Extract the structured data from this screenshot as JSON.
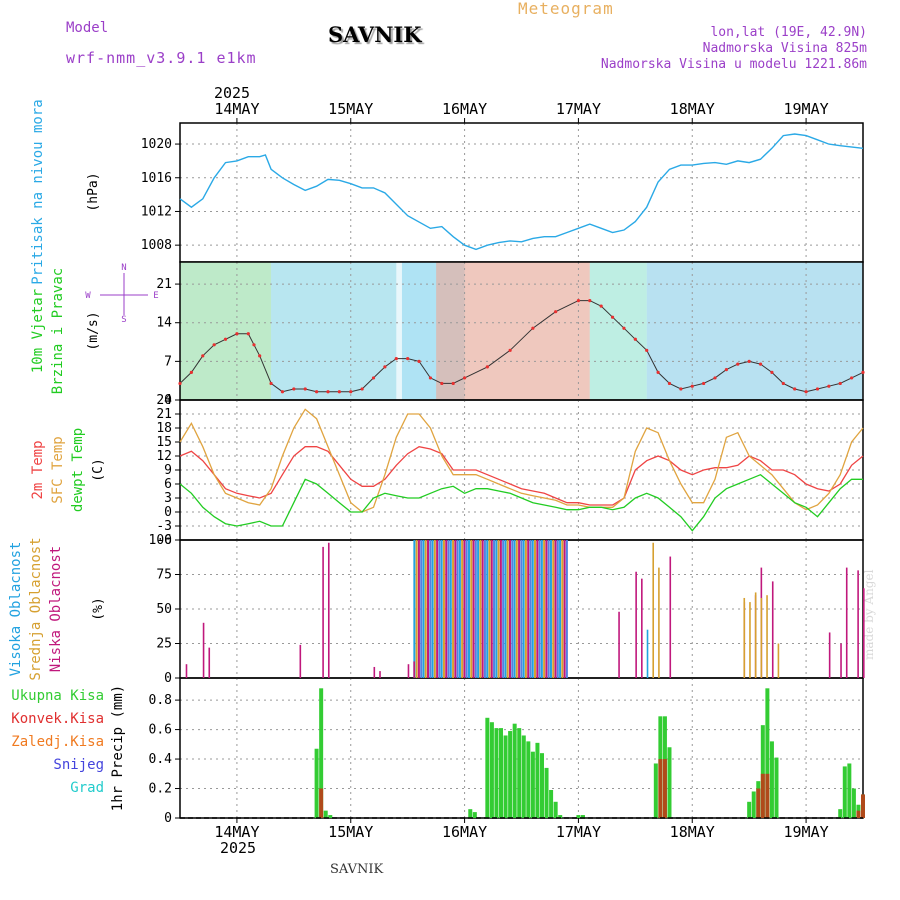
{
  "header": {
    "model_label": "Model",
    "model_name": "wrf-nmm_v3.9.1 e1km",
    "station": "SAVNIK",
    "title": "Meteogram",
    "lonlat": "lon,lat (19E, 42.9N)",
    "altitude": "Nadmorska Visina 825m",
    "model_altitude": "Nadmorska Visina u modelu 1221.86m"
  },
  "footer": {
    "station": "SAVNIK"
  },
  "credit": "made by Angel",
  "colors": {
    "pressure": "#2aa9e6",
    "temp2m": "#ef4444",
    "sfc": "#e0a440",
    "dewpt": "#22cc22",
    "high_cloud": "#22a2e0",
    "mid_cloud": "#d6a030",
    "low_cloud": "#c0187c",
    "total_precip": "#33cc33",
    "conv_precip": "#e03030",
    "frozen_precip": "#f07a20",
    "snow": "#4444dd",
    "graupel": "#22cccc",
    "title_purple": "#9b3fc8",
    "meteogram_orange": "#e8b060"
  },
  "chart_data": [
    {
      "type": "line",
      "name": "pressure",
      "title": "",
      "ylabel_lines": [
        "Pritisak na nivou mora",
        "(hPa)"
      ],
      "ylim": [
        1006,
        1022.5
      ],
      "yticks": [
        1008,
        1012,
        1016,
        1020
      ],
      "year_label": "2025",
      "date_labels": [
        "14MAY",
        "15MAY",
        "16MAY",
        "17MAY",
        "18MAY",
        "19MAY"
      ],
      "x_days": [
        0,
        1,
        2,
        3,
        4,
        5
      ],
      "xlim": [
        -0.5,
        5.5
      ],
      "grid": true,
      "series": [
        {
          "x": [
            -0.5,
            -0.4,
            -0.3,
            -0.2,
            -0.1,
            0,
            0.1,
            0.2,
            0.25,
            0.3,
            0.4,
            0.5,
            0.6,
            0.7,
            0.8,
            0.9,
            1,
            1.1,
            1.2,
            1.3,
            1.5,
            1.7,
            1.8,
            1.9,
            2,
            2.1,
            2.2,
            2.3,
            2.4,
            2.5,
            2.6,
            2.7,
            2.8,
            2.9,
            3,
            3.1,
            3.2,
            3.3,
            3.4,
            3.5,
            3.6,
            3.7,
            3.8,
            3.9,
            4,
            4.1,
            4.2,
            4.3,
            4.4,
            4.5,
            4.6,
            4.7,
            4.8,
            4.9,
            5,
            5.1,
            5.2,
            5.3,
            5.5
          ],
          "values": [
            1013.5,
            1012.5,
            1013.5,
            1016,
            1017.8,
            1018,
            1018.5,
            1018.5,
            1018.7,
            1017,
            1016,
            1015.2,
            1014.5,
            1015,
            1015.8,
            1015.7,
            1015.3,
            1014.8,
            1014.8,
            1014.2,
            1011.5,
            1010,
            1010.2,
            1009,
            1008,
            1007.5,
            1008,
            1008.3,
            1008.5,
            1008.4,
            1008.8,
            1009,
            1009,
            1009.5,
            1010,
            1010.5,
            1010,
            1009.5,
            1009.8,
            1010.8,
            1012.5,
            1015.5,
            1017,
            1017.5,
            1017.5,
            1017.7,
            1017.8,
            1017.6,
            1018,
            1017.8,
            1018.2,
            1019.5,
            1021,
            1021.2,
            1021,
            1020.5,
            1020,
            1019.8,
            1019.5
          ]
        }
      ]
    },
    {
      "type": "line",
      "name": "wind",
      "ylabel_lines": [
        "10m Vjetar",
        "Brzina i Pravac",
        "(m/s)"
      ],
      "compass_labels": {
        "n": "N",
        "s": "S",
        "w": "W",
        "e": "E"
      },
      "ylim": [
        0,
        25
      ],
      "yticks": [
        0,
        7,
        14,
        21
      ],
      "xlim": [
        -0.5,
        5.5
      ],
      "grid": true,
      "series": [
        {
          "name": "speed",
          "x": [
            -0.5,
            -0.4,
            -0.3,
            -0.2,
            -0.1,
            0,
            0.1,
            0.15,
            0.2,
            0.3,
            0.4,
            0.5,
            0.6,
            0.7,
            0.8,
            0.9,
            1,
            1.1,
            1.2,
            1.3,
            1.4,
            1.5,
            1.6,
            1.7,
            1.8,
            1.9,
            2,
            2.2,
            2.4,
            2.6,
            2.8,
            3,
            3.1,
            3.2,
            3.3,
            3.4,
            3.5,
            3.6,
            3.7,
            3.8,
            3.9,
            4,
            4.1,
            4.2,
            4.3,
            4.4,
            4.5,
            4.6,
            4.7,
            4.8,
            4.9,
            5,
            5.1,
            5.2,
            5.3,
            5.4,
            5.5
          ],
          "values": [
            3,
            5,
            8,
            10,
            11,
            12,
            12,
            10,
            8,
            3,
            1.5,
            2,
            2,
            1.5,
            1.5,
            1.5,
            1.5,
            2,
            4,
            6,
            7.5,
            7.5,
            7,
            4,
            3,
            3,
            4,
            6,
            9,
            13,
            16,
            18,
            18,
            17,
            15,
            13,
            11,
            9,
            5,
            3,
            2,
            2.5,
            3,
            4,
            5.5,
            6.5,
            7,
            6.5,
            5,
            3,
            2,
            1.5,
            2,
            2.5,
            3,
            4,
            5
          ]
        }
      ]
    },
    {
      "type": "line",
      "name": "temperature",
      "ylabel_lines": [
        "2m Temp",
        "SFC Temp",
        "dewpt Temp",
        "(C)"
      ],
      "ylim": [
        -6,
        24
      ],
      "yticks": [
        -6,
        -3,
        0,
        3,
        6,
        9,
        12,
        15,
        18,
        21,
        24
      ],
      "xlim": [
        -0.5,
        5.5
      ],
      "grid": true,
      "series": [
        {
          "name": "2m Temp",
          "x": [
            -0.5,
            -0.4,
            -0.3,
            -0.2,
            -0.1,
            0,
            0.1,
            0.2,
            0.3,
            0.4,
            0.5,
            0.6,
            0.7,
            0.8,
            0.9,
            1,
            1.1,
            1.2,
            1.3,
            1.4,
            1.5,
            1.6,
            1.7,
            1.8,
            1.9,
            2,
            2.1,
            2.2,
            2.3,
            2.4,
            2.5,
            2.6,
            2.7,
            2.8,
            2.9,
            3,
            3.1,
            3.2,
            3.3,
            3.4,
            3.5,
            3.6,
            3.7,
            3.8,
            3.9,
            4,
            4.1,
            4.2,
            4.3,
            4.4,
            4.5,
            4.6,
            4.7,
            4.8,
            4.9,
            5,
            5.1,
            5.2,
            5.3,
            5.4,
            5.5
          ],
          "values": [
            12,
            13,
            11,
            8,
            5,
            4,
            3.5,
            3,
            4,
            8,
            12,
            14,
            14,
            13,
            10,
            7,
            5.5,
            5.5,
            7,
            10,
            12.5,
            14,
            13.5,
            12.5,
            9,
            9,
            9,
            8,
            7,
            6,
            5,
            4.5,
            4,
            3,
            2,
            2,
            1.5,
            1.5,
            1.5,
            3,
            9,
            11,
            12,
            11,
            9,
            8,
            9,
            9.5,
            9.5,
            10,
            12,
            11,
            9,
            9,
            8,
            6,
            5,
            4.5,
            6,
            10,
            12
          ]
        },
        {
          "name": "SFC Temp",
          "x": [
            -0.5,
            -0.4,
            -0.3,
            -0.2,
            -0.1,
            0,
            0.1,
            0.2,
            0.3,
            0.4,
            0.5,
            0.6,
            0.7,
            0.8,
            0.9,
            1,
            1.1,
            1.2,
            1.3,
            1.4,
            1.5,
            1.6,
            1.7,
            1.8,
            1.9,
            2,
            2.1,
            2.2,
            2.3,
            2.4,
            2.5,
            2.6,
            2.7,
            2.8,
            2.9,
            3,
            3.1,
            3.2,
            3.3,
            3.4,
            3.5,
            3.6,
            3.7,
            3.8,
            3.9,
            4,
            4.1,
            4.2,
            4.3,
            4.4,
            4.5,
            4.6,
            4.7,
            4.8,
            4.9,
            5,
            5.1,
            5.2,
            5.3,
            5.4,
            5.5
          ],
          "values": [
            15,
            19,
            14,
            8,
            4,
            3,
            2,
            1.5,
            5,
            12,
            18,
            22,
            20,
            14,
            8,
            2,
            0,
            1,
            8,
            16,
            21,
            21,
            18,
            12,
            8,
            8,
            8,
            7,
            6,
            5,
            4,
            3.5,
            3,
            2.5,
            1.5,
            1.5,
            1,
            1,
            1,
            3,
            13,
            18,
            17,
            11,
            6,
            2,
            2,
            7,
            16,
            17,
            12,
            10,
            8,
            5,
            2,
            0.5,
            1.5,
            4,
            8,
            15,
            18
          ]
        },
        {
          "name": "dewpt Temp",
          "x": [
            -0.5,
            -0.4,
            -0.3,
            -0.2,
            -0.1,
            0,
            0.1,
            0.2,
            0.3,
            0.4,
            0.5,
            0.6,
            0.7,
            0.8,
            0.9,
            1,
            1.1,
            1.2,
            1.3,
            1.4,
            1.5,
            1.6,
            1.7,
            1.8,
            1.9,
            2,
            2.1,
            2.2,
            2.3,
            2.4,
            2.5,
            2.6,
            2.7,
            2.8,
            2.9,
            3,
            3.1,
            3.2,
            3.3,
            3.4,
            3.5,
            3.6,
            3.7,
            3.8,
            3.9,
            4,
            4.1,
            4.2,
            4.3,
            4.4,
            4.5,
            4.6,
            4.7,
            4.8,
            4.9,
            5,
            5.1,
            5.2,
            5.3,
            5.4,
            5.5
          ],
          "values": [
            6,
            4,
            1,
            -1,
            -2.5,
            -3,
            -2.5,
            -2,
            -3,
            -3,
            2,
            7,
            6,
            4,
            2,
            0,
            0,
            3,
            4,
            3.5,
            3,
            3,
            4,
            5,
            5.5,
            4,
            5,
            5,
            4.5,
            4,
            3,
            2,
            1.5,
            1,
            0.5,
            0.5,
            1,
            1,
            0.5,
            1,
            3,
            4,
            3,
            1,
            -1,
            -4,
            -1,
            3,
            5,
            6,
            7,
            8,
            6,
            4,
            2,
            1,
            -1,
            2,
            5,
            7,
            7
          ]
        }
      ]
    },
    {
      "type": "bar",
      "name": "clouds",
      "ylabel_lines": [
        "Visoka Oblacnost",
        "Srednja Oblacnost",
        "Niska Oblacnost",
        "(%)"
      ],
      "ylim": [
        0,
        100
      ],
      "yticks": [
        0,
        25,
        50,
        75,
        100
      ],
      "xlim": [
        -0.5,
        5.5
      ],
      "grid": true,
      "overcast_span_days": [
        1.55,
        2.9
      ],
      "series": [
        {
          "name": "Niska Oblacnost",
          "x": [
            -0.45,
            -0.3,
            -0.25,
            0.55,
            0.75,
            0.8,
            1.2,
            1.25,
            1.5,
            1.55,
            3.35,
            3.5,
            3.55,
            3.8,
            4.45,
            4.55,
            4.6,
            4.7,
            5.2,
            5.3,
            5.35,
            5.45,
            5.5
          ],
          "values": [
            10,
            40,
            22,
            24,
            95,
            98,
            8,
            5,
            10,
            12,
            48,
            77,
            72,
            88,
            55,
            60,
            80,
            70,
            33,
            25,
            80,
            78,
            65
          ]
        },
        {
          "name": "Srednja Oblacnost",
          "x": [
            3.65,
            3.7,
            4.45,
            4.5,
            4.55,
            4.6,
            4.65,
            4.75
          ],
          "values": [
            98,
            80,
            58,
            55,
            62,
            58,
            60,
            25
          ]
        },
        {
          "name": "Visoka Oblacnost",
          "x": [
            3.6
          ],
          "values": [
            35
          ]
        }
      ]
    },
    {
      "type": "bar",
      "name": "precipitation",
      "ylabel_lines": [
        "1hr Precip (mm)"
      ],
      "legend": [
        "Ukupna Kisa",
        "Konvek.Kisa",
        "Zaledj.Kisa",
        "Snijeg",
        "Grad"
      ],
      "ylim": [
        0,
        0.95
      ],
      "yticks": [
        0,
        0.2,
        0.4,
        0.6,
        0.8
      ],
      "xlim": [
        -0.5,
        5.5
      ],
      "grid": true,
      "bottom_date_labels": [
        "14MAY",
        "15MAY",
        "16MAY",
        "17MAY",
        "18MAY",
        "19MAY"
      ],
      "bottom_year_label": "2025",
      "series": [
        {
          "name": "Ukupna Kisa",
          "x": [
            0.7,
            0.74,
            0.78,
            0.82,
            2.05,
            2.09,
            2.2,
            2.24,
            2.28,
            2.32,
            2.36,
            2.4,
            2.44,
            2.48,
            2.52,
            2.56,
            2.6,
            2.64,
            2.68,
            2.72,
            2.76,
            2.8,
            2.84,
            3.0,
            3.04,
            3.68,
            3.72,
            3.76,
            3.8,
            4.5,
            4.54,
            4.58,
            4.62,
            4.66,
            4.7,
            4.74,
            5.3,
            5.34,
            5.38,
            5.42,
            5.46,
            5.5
          ],
          "values": [
            0.47,
            0.88,
            0.05,
            0.02,
            0.06,
            0.04,
            0.68,
            0.65,
            0.61,
            0.61,
            0.56,
            0.59,
            0.64,
            0.61,
            0.56,
            0.52,
            0.45,
            0.51,
            0.44,
            0.34,
            0.19,
            0.11,
            0.02,
            0.02,
            0.02,
            0.37,
            0.69,
            0.69,
            0.48,
            0.11,
            0.18,
            0.25,
            0.63,
            0.88,
            0.52,
            0.41,
            0.06,
            0.35,
            0.37,
            0.2,
            0.09,
            0.16
          ]
        },
        {
          "name": "Konvek.Kisa",
          "x": [
            0.74,
            3.72,
            3.76,
            4.58,
            4.62,
            4.66,
            5.46,
            5.5
          ],
          "values": [
            0.2,
            0.4,
            0.4,
            0.2,
            0.3,
            0.3,
            0.05,
            0.16
          ]
        }
      ]
    }
  ]
}
